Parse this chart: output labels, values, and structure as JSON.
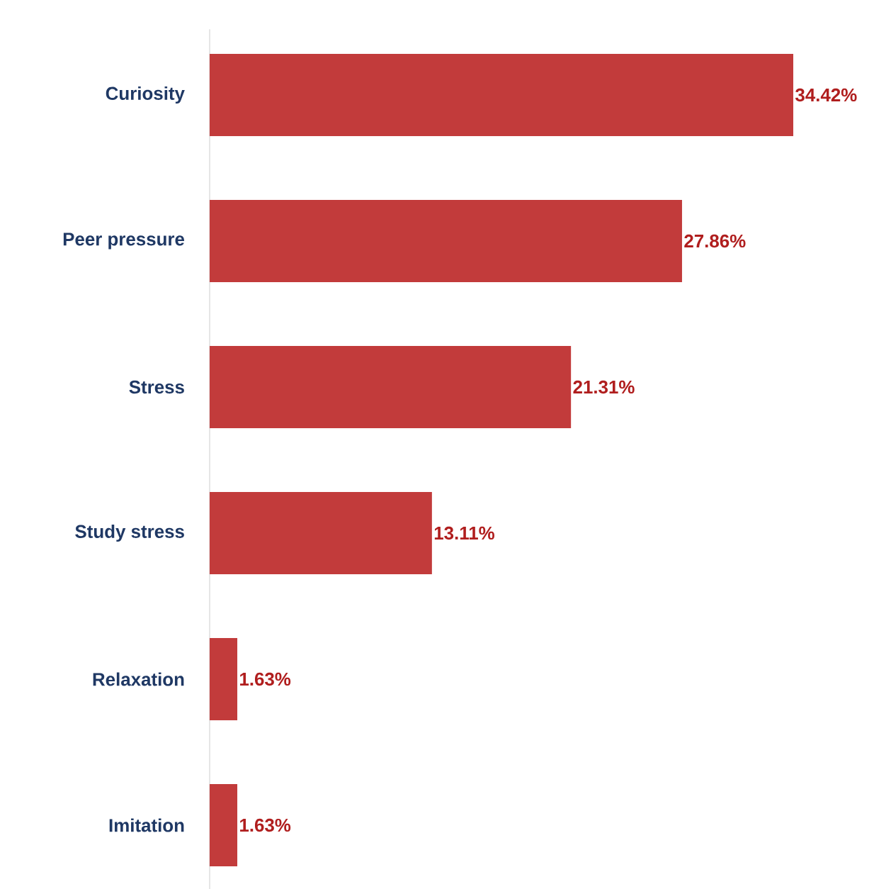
{
  "chart_data": {
    "type": "bar",
    "orientation": "horizontal",
    "categories": [
      "Curiosity",
      "Peer pressure",
      "Stress",
      "Study stress",
      "Relaxation",
      "Imitation"
    ],
    "values": [
      34.42,
      27.86,
      21.31,
      13.11,
      1.63,
      1.63
    ],
    "value_labels": [
      "34.42%",
      "27.86%",
      "21.31%",
      "13.11%",
      "1.63%",
      "1.63%"
    ],
    "color": "#c23b3b"
  }
}
